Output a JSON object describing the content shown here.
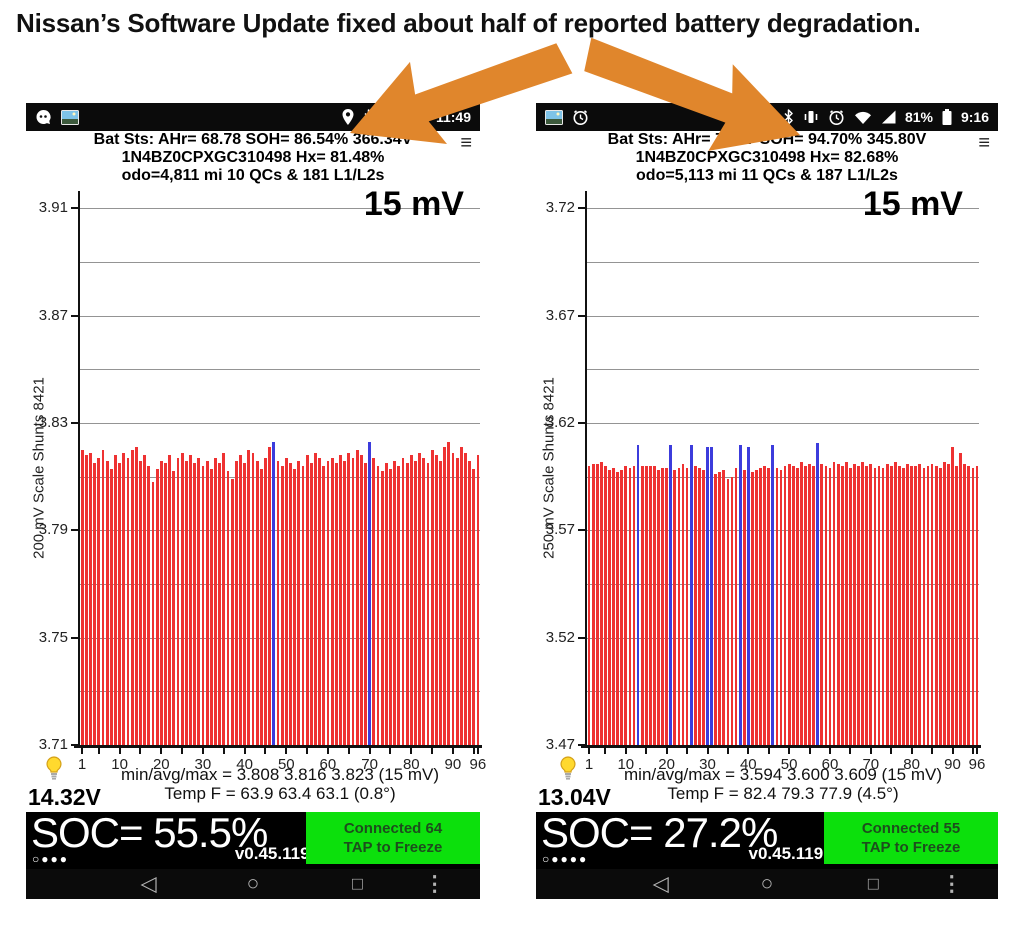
{
  "title": "Nissan’s Software Update fixed about half of reported battery degradation.",
  "colors": {
    "arrow": "#e0862c",
    "bar_red": "#ee3232",
    "bar_blue": "#3c3cdc",
    "green_button": "#0ce00c"
  },
  "nav": {
    "back": "◁",
    "home": "○",
    "recents": "□",
    "overflow": "⋮"
  },
  "phones": [
    {
      "status_bar": {
        "network": "LTE",
        "time": "11:49"
      },
      "header": {
        "line1": "Bat Sts:  AHr= 68.78  SOH= 86.54%  366.34V",
        "line2": "1N4BZ0CPXGC310498  Hx= 81.48%",
        "line3": "odo=4,811 mi 10 QCs & 181 L1/L2s",
        "menu_icon": "≡"
      },
      "footer": {
        "aux_voltage": "14.32V",
        "soc": "SOC= 55.5%",
        "packets": "○●●●",
        "version": "v0.45.119 en",
        "connect_line1": "Connected 64",
        "connect_line2": "TAP to Freeze"
      }
    },
    {
      "status_bar": {
        "battery_pct": "81%",
        "time": "9:16"
      },
      "header": {
        "line1": "Bat Sts:  AHr= 75.27  SOH= 94.70%  345.80V",
        "line2": "1N4BZ0CPXGC310498  Hx= 82.68%",
        "line3": "odo=5,113 mi 11 QCs & 187 L1/L2s",
        "menu_icon": "≡"
      },
      "footer": {
        "aux_voltage": "13.04V",
        "soc": "SOC= 27.2%",
        "packets": "○●●●●",
        "version": "v0.45.119 en",
        "connect_line1": "Connected 55",
        "connect_line2": "TAP to Freeze"
      }
    }
  ],
  "chart_data": [
    {
      "type": "bar",
      "title_overlay": "15 mV",
      "ylabel": "200 mV Scale  Shunts 8421",
      "ylim": [
        3.71,
        3.9165
      ],
      "y_tick_labels": [
        3.91,
        3.87,
        3.83,
        3.79,
        3.75,
        3.71
      ],
      "gridlines": [
        3.91,
        3.89,
        3.87,
        3.85,
        3.83,
        3.81,
        3.79,
        3.77,
        3.75,
        3.73
      ],
      "x_tick_labels": [
        1,
        10,
        20,
        30,
        40,
        50,
        60,
        70,
        80,
        90,
        96
      ],
      "cells": 96,
      "shunt_cells": [
        47,
        70
      ],
      "stats_line": "min/avg/max = 3.808 3.816 3.823  (15 mV)",
      "temp_line": "Temp F = 63.9  63.4  63.1  (0.8°)",
      "values": [
        3.82,
        3.818,
        3.819,
        3.815,
        3.817,
        3.82,
        3.816,
        3.813,
        3.818,
        3.815,
        3.819,
        3.817,
        3.82,
        3.821,
        3.816,
        3.818,
        3.814,
        3.808,
        3.813,
        3.816,
        3.815,
        3.818,
        3.812,
        3.817,
        3.819,
        3.816,
        3.818,
        3.815,
        3.817,
        3.814,
        3.816,
        3.813,
        3.817,
        3.815,
        3.819,
        3.812,
        3.809,
        3.816,
        3.818,
        3.815,
        3.82,
        3.819,
        3.816,
        3.813,
        3.817,
        3.821,
        3.82,
        3.816,
        3.814,
        3.817,
        3.815,
        3.813,
        3.816,
        3.814,
        3.818,
        3.815,
        3.819,
        3.817,
        3.814,
        3.816,
        3.817,
        3.815,
        3.818,
        3.816,
        3.819,
        3.817,
        3.82,
        3.818,
        3.815,
        3.82,
        3.817,
        3.814,
        3.812,
        3.815,
        3.813,
        3.816,
        3.814,
        3.817,
        3.815,
        3.818,
        3.816,
        3.819,
        3.817,
        3.815,
        3.82,
        3.818,
        3.816,
        3.821,
        3.823,
        3.819,
        3.817,
        3.821,
        3.819,
        3.816,
        3.813,
        3.818
      ]
    },
    {
      "type": "bar",
      "title_overlay": "15 mV",
      "ylabel": "250 mV Scale  Shunts 8421",
      "ylim": [
        3.47,
        3.728
      ],
      "y_tick_labels": [
        3.72,
        3.67,
        3.62,
        3.57,
        3.52,
        3.47
      ],
      "gridlines": [
        3.72,
        3.695,
        3.67,
        3.645,
        3.62,
        3.595,
        3.57,
        3.545,
        3.52,
        3.495
      ],
      "x_tick_labels": [
        1,
        10,
        20,
        30,
        40,
        50,
        60,
        70,
        80,
        90,
        96
      ],
      "cells": 96,
      "shunt_cells": [
        13,
        21,
        26,
        30,
        31,
        38,
        40,
        46,
        57
      ],
      "stats_line": "min/avg/max = 3.594 3.600 3.609  (15 mV)",
      "temp_line": "Temp F = 82.4  79.3  77.9  (4.5°)",
      "values": [
        3.6,
        3.601,
        3.601,
        3.602,
        3.6,
        3.598,
        3.599,
        3.597,
        3.598,
        3.6,
        3.599,
        3.6,
        3.606,
        3.6,
        3.6,
        3.6,
        3.6,
        3.598,
        3.599,
        3.599,
        3.606,
        3.598,
        3.599,
        3.601,
        3.599,
        3.606,
        3.6,
        3.599,
        3.598,
        3.605,
        3.605,
        3.596,
        3.597,
        3.598,
        3.594,
        3.595,
        3.599,
        3.606,
        3.598,
        3.605,
        3.597,
        3.598,
        3.599,
        3.6,
        3.599,
        3.606,
        3.599,
        3.598,
        3.6,
        3.601,
        3.6,
        3.599,
        3.602,
        3.6,
        3.601,
        3.6,
        3.607,
        3.601,
        3.6,
        3.599,
        3.602,
        3.601,
        3.6,
        3.602,
        3.599,
        3.601,
        3.6,
        3.602,
        3.6,
        3.601,
        3.599,
        3.6,
        3.599,
        3.601,
        3.6,
        3.602,
        3.6,
        3.599,
        3.601,
        3.6,
        3.6,
        3.601,
        3.599,
        3.6,
        3.601,
        3.6,
        3.599,
        3.602,
        3.601,
        3.609,
        3.6,
        3.606,
        3.601,
        3.6,
        3.599,
        3.6
      ]
    }
  ]
}
